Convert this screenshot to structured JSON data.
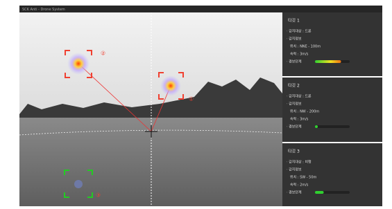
{
  "header": {
    "title": "SCK Anti - Drone System"
  },
  "markers": [
    "①",
    "②",
    "③"
  ],
  "targets": [
    {
      "title": "타깃 1",
      "object": "· 감지대상 : 드론",
      "info": "· 감지정보",
      "position": "위치 : NNE - 100m",
      "speed": "속력 : 3m/s",
      "alert": "· 경보단계",
      "alert_level": 0.75
    },
    {
      "title": "타깃 2",
      "object": "· 감지대상 : 드론",
      "info": "· 감지정보",
      "position": "위치 : NW - 200m",
      "speed": "속력 : 3m/s",
      "alert": "· 경보단계",
      "alert_level": 0.08
    },
    {
      "title": "타깃 3",
      "object": "· 감지대상 : 비행",
      "info": "· 감지정보",
      "position": "위치 : SW - 50m",
      "speed": "속력 : 2m/s",
      "alert": "· 경보단계",
      "alert_level": 0.25
    }
  ]
}
